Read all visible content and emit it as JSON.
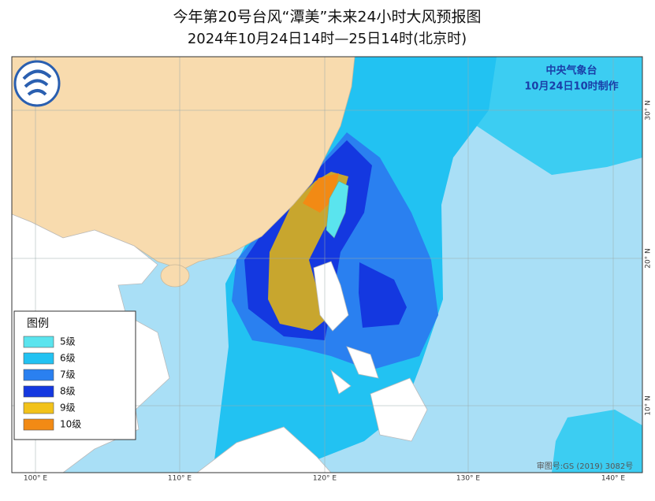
{
  "header": {
    "title": "今年第20号台风“潭美”未来24小时大风预报图",
    "subtitle": "2024年10月24日14时—25日14时(北京时)"
  },
  "agency": {
    "name": "中央气象台",
    "issued": "10月24日10时制作"
  },
  "legend": {
    "title": "图例",
    "items": [
      {
        "label": "5级",
        "color": "#5ae4ee"
      },
      {
        "label": "6级",
        "color": "#22c2f2"
      },
      {
        "label": "7级",
        "color": "#2a80f0"
      },
      {
        "label": "8级",
        "color": "#1438e0"
      },
      {
        "label": "9级",
        "color": "#f2c21a"
      },
      {
        "label": "10级",
        "color": "#f28a14"
      }
    ]
  },
  "longitude_labels": [
    "100° E",
    "110° E",
    "120° E",
    "130° E",
    "140° E"
  ],
  "latitude_labels": [
    "30° N",
    "20° N",
    "10° N"
  ],
  "map_approval": "审图号:GS (2019) 3082号"
}
